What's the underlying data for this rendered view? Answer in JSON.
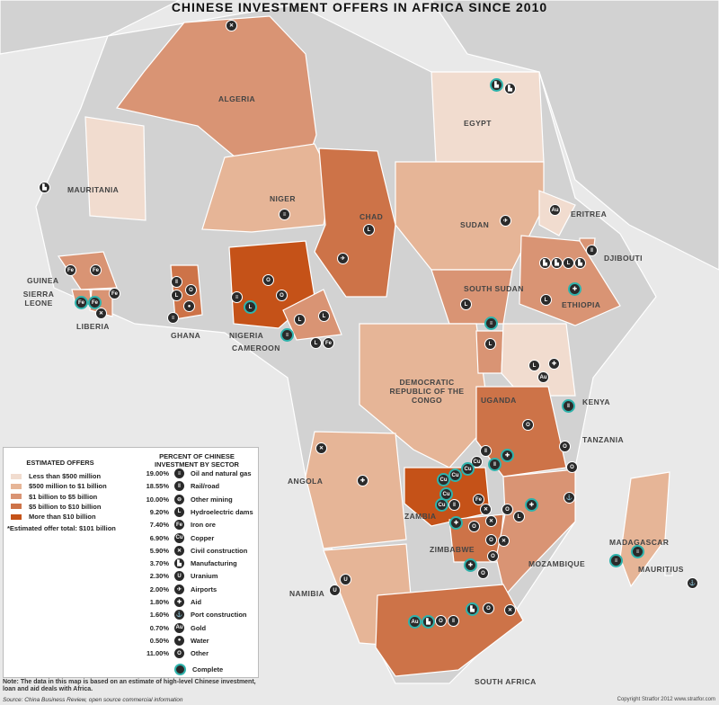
{
  "title": "CHINESE INVESTMENT OFFERS IN AFRICA SINCE 2010",
  "colors": {
    "sea": "#e9e9e9",
    "land_other": "#d2d2d2",
    "tier1": "#f1dccf",
    "tier2": "#e6b597",
    "tier3": "#d99474",
    "tier4": "#cd7348",
    "tier5": "#c55218",
    "complete_ring": "#2fb3ac"
  },
  "countries": [
    {
      "name": "ALGERIA",
      "tier": 3
    },
    {
      "name": "EGYPT",
      "tier": 1
    },
    {
      "name": "MAURITANIA",
      "tier": 1
    },
    {
      "name": "NIGER",
      "tier": 2
    },
    {
      "name": "CHAD",
      "tier": 4
    },
    {
      "name": "SUDAN",
      "tier": 2
    },
    {
      "name": "ERITREA",
      "tier": 1
    },
    {
      "name": "DJIBOUTI",
      "tier": 3
    },
    {
      "name": "SOUTH SUDAN",
      "tier": 3
    },
    {
      "name": "ETHIOPIA",
      "tier": 3
    },
    {
      "name": "GUINEA",
      "tier": 3
    },
    {
      "name": "SIERRA LEONE",
      "tier": 3
    },
    {
      "name": "LIBERIA",
      "tier": 3
    },
    {
      "name": "GHANA",
      "tier": 4
    },
    {
      "name": "NIGERIA",
      "tier": 5
    },
    {
      "name": "CAMEROON",
      "tier": 3
    },
    {
      "name": "DEMOCRATIC REPUBLIC OF THE CONGO",
      "tier": 2
    },
    {
      "name": "UGANDA",
      "tier": 3
    },
    {
      "name": "KENYA",
      "tier": 1
    },
    {
      "name": "TANZANIA",
      "tier": 4
    },
    {
      "name": "ANGOLA",
      "tier": 2
    },
    {
      "name": "ZAMBIA",
      "tier": 5
    },
    {
      "name": "ZIMBABWE",
      "tier": 4
    },
    {
      "name": "MOZAMBIQUE",
      "tier": 3
    },
    {
      "name": "NAMIBIA",
      "tier": 2
    },
    {
      "name": "SOUTH AFRICA",
      "tier": 4
    },
    {
      "name": "MADAGASCAR",
      "tier": 2
    },
    {
      "name": "MAURITIUS",
      "tier": 0
    }
  ],
  "legend": {
    "offers_title": "ESTIMATED OFFERS",
    "offers": [
      {
        "label": "Less than $500 million",
        "color": "#f1dccf"
      },
      {
        "label": "$500 million to $1 billion",
        "color": "#e6b597"
      },
      {
        "label": "$1 billion to $5 billion",
        "color": "#d99474"
      },
      {
        "label": "$5 billion to $10 billion",
        "color": "#cd7348"
      },
      {
        "label": "More than $10 billion",
        "color": "#c55218"
      }
    ],
    "total": "*Estimated offer total: $101 billion",
    "sectors_title_1": "PERCENT OF CHINESE",
    "sectors_title_2": "INVESTMENT BY SECTOR",
    "sectors": [
      {
        "pct": "19.00%",
        "label": "Oil and natural gas",
        "icon": "oil-barrel"
      },
      {
        "pct": "18.55%",
        "label": "Rail/road",
        "icon": "rail"
      },
      {
        "pct": "10.00%",
        "label": "Other mining",
        "icon": "mine-cart"
      },
      {
        "pct": "9.20%",
        "label": "Hydroelectric dams",
        "icon": "dam"
      },
      {
        "pct": "7.40%",
        "label": "Iron ore",
        "icon": "Fe"
      },
      {
        "pct": "6.90%",
        "label": "Copper",
        "icon": "Cu"
      },
      {
        "pct": "5.90%",
        "label": "Civil construction",
        "icon": "tools"
      },
      {
        "pct": "3.70%",
        "label": "Manufacturing",
        "icon": "factory"
      },
      {
        "pct": "2.30%",
        "label": "Uranium",
        "icon": "U"
      },
      {
        "pct": "2.00%",
        "label": "Airports",
        "icon": "airplane"
      },
      {
        "pct": "1.80%",
        "label": "Aid",
        "icon": "cross"
      },
      {
        "pct": "1.60%",
        "label": "Port construction",
        "icon": "anchor"
      },
      {
        "pct": "0.70%",
        "label": "Gold",
        "icon": "Au"
      },
      {
        "pct": "0.50%",
        "label": "Water",
        "icon": "drop"
      },
      {
        "pct": "11.00%",
        "label": "Other",
        "icon": "O"
      }
    ],
    "complete_label": "Complete"
  },
  "note": "Note: The data in this map is based on an estimate of high-level Chinese investment, loan and aid deals with Africa.",
  "source": "Source: China Business Review, open source commercial information",
  "copyright": "Copyright Stratfor 2012   www.stratfor.com"
}
